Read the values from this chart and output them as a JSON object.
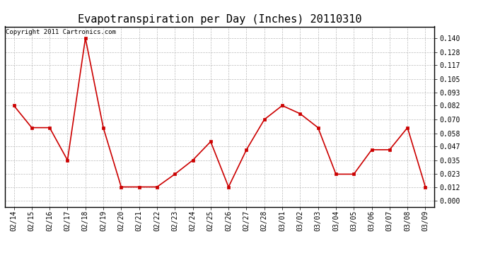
{
  "title": "Evapotranspiration per Day (Inches) 20110310",
  "copyright_text": "Copyright 2011 Cartronics.com",
  "x_labels": [
    "02/14",
    "02/15",
    "02/16",
    "02/17",
    "02/18",
    "02/19",
    "02/20",
    "02/21",
    "02/22",
    "02/23",
    "02/24",
    "02/25",
    "02/26",
    "02/27",
    "02/28",
    "03/01",
    "03/02",
    "03/03",
    "03/04",
    "03/05",
    "03/06",
    "03/07",
    "03/08",
    "03/09"
  ],
  "y_values": [
    0.082,
    0.063,
    0.063,
    0.035,
    0.14,
    0.063,
    0.012,
    0.012,
    0.012,
    0.023,
    0.035,
    0.051,
    0.012,
    0.044,
    0.07,
    0.082,
    0.075,
    0.063,
    0.023,
    0.023,
    0.044,
    0.044,
    0.063,
    0.012
  ],
  "line_color": "#cc0000",
  "marker": "s",
  "marker_size": 3,
  "grid_color": "#bbbbbb",
  "background_color": "#ffffff",
  "y_ticks": [
    0.0,
    0.012,
    0.023,
    0.035,
    0.047,
    0.058,
    0.07,
    0.082,
    0.093,
    0.105,
    0.117,
    0.128,
    0.14
  ],
  "ylim": [
    -0.005,
    0.15
  ],
  "title_fontsize": 11,
  "tick_fontsize": 7,
  "copyright_fontsize": 6.5
}
